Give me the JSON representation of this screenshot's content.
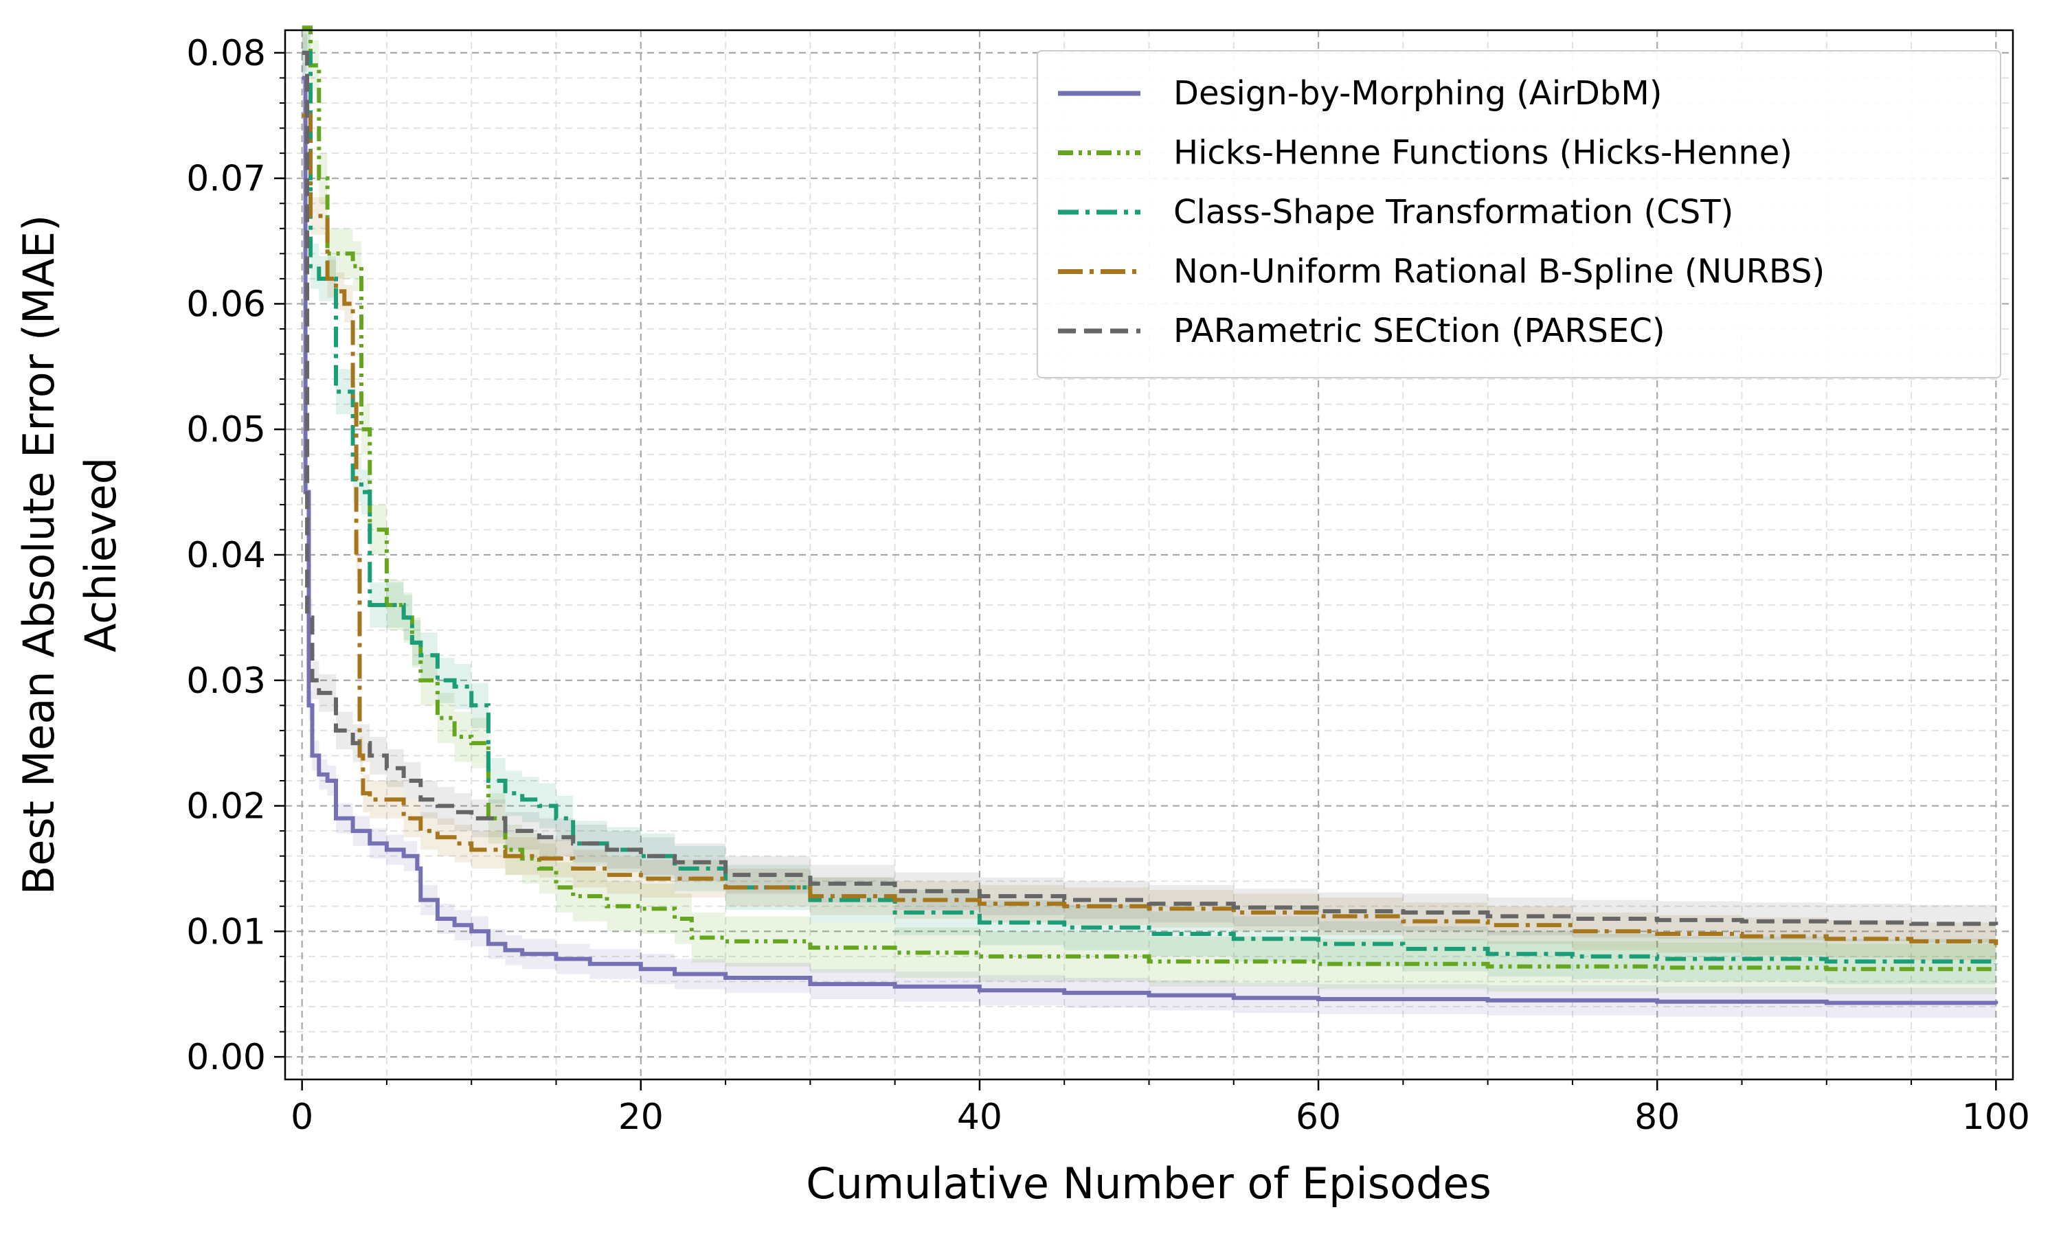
{
  "chart_data": {
    "type": "line",
    "xlabel": "Cumulative Number of Episodes",
    "ylabel": [
      "Best Mean Absolute Error (MAE)",
      "Achieved"
    ],
    "xlim": [
      -1,
      101
    ],
    "ylim": [
      -0.0018,
      0.0818
    ],
    "xticks": [
      0,
      20,
      40,
      60,
      80,
      100
    ],
    "yticks": [
      0.0,
      0.01,
      0.02,
      0.03,
      0.04,
      0.05,
      0.06,
      0.07,
      0.08
    ],
    "xminor_step": 5,
    "yminor_step": 0.002,
    "grid": true,
    "legend_position": "top-right",
    "series": [
      {
        "name": "Design-by-Morphing (AirDbM)",
        "color": "#7570b3",
        "dash": "solid",
        "band": 0.0012,
        "points": [
          [
            0,
            0.078
          ],
          [
            0.2,
            0.045
          ],
          [
            0.4,
            0.028
          ],
          [
            0.6,
            0.024
          ],
          [
            1,
            0.0225
          ],
          [
            1.5,
            0.022
          ],
          [
            2,
            0.019
          ],
          [
            3,
            0.018
          ],
          [
            4,
            0.017
          ],
          [
            5,
            0.0165
          ],
          [
            6,
            0.016
          ],
          [
            6.8,
            0.015
          ],
          [
            7,
            0.0125
          ],
          [
            8,
            0.011
          ],
          [
            9,
            0.0105
          ],
          [
            10,
            0.01
          ],
          [
            11,
            0.009
          ],
          [
            12,
            0.0085
          ],
          [
            13,
            0.0082
          ],
          [
            15,
            0.0078
          ],
          [
            17,
            0.0074
          ],
          [
            20,
            0.007
          ],
          [
            22,
            0.0066
          ],
          [
            25,
            0.0063
          ],
          [
            30,
            0.0058
          ],
          [
            35,
            0.0056
          ],
          [
            40,
            0.0053
          ],
          [
            45,
            0.0051
          ],
          [
            50,
            0.0049
          ],
          [
            55,
            0.0047
          ],
          [
            60,
            0.0046
          ],
          [
            70,
            0.0045
          ],
          [
            80,
            0.0044
          ],
          [
            90,
            0.0043
          ],
          [
            100,
            0.0042
          ]
        ]
      },
      {
        "name": "Hicks-Henne Functions (Hicks-Henne)",
        "color": "#66a61e",
        "dash": "dashdotdot",
        "band": 0.002,
        "points": [
          [
            0,
            0.082
          ],
          [
            0.5,
            0.079
          ],
          [
            1,
            0.07
          ],
          [
            1.5,
            0.064
          ],
          [
            2.5,
            0.064
          ],
          [
            3,
            0.063
          ],
          [
            3.5,
            0.05
          ],
          [
            4,
            0.042
          ],
          [
            5,
            0.036
          ],
          [
            6,
            0.035
          ],
          [
            6.5,
            0.033
          ],
          [
            7,
            0.03
          ],
          [
            8,
            0.027
          ],
          [
            9,
            0.0255
          ],
          [
            10,
            0.025
          ],
          [
            11,
            0.019
          ],
          [
            12,
            0.0165
          ],
          [
            13,
            0.0158
          ],
          [
            14,
            0.015
          ],
          [
            15,
            0.0135
          ],
          [
            16,
            0.0128
          ],
          [
            18,
            0.012
          ],
          [
            20,
            0.0118
          ],
          [
            22,
            0.011
          ],
          [
            23,
            0.0095
          ],
          [
            25,
            0.0092
          ],
          [
            30,
            0.0087
          ],
          [
            35,
            0.0083
          ],
          [
            40,
            0.008
          ],
          [
            50,
            0.0076
          ],
          [
            60,
            0.0074
          ],
          [
            70,
            0.0072
          ],
          [
            80,
            0.0071
          ],
          [
            90,
            0.007
          ],
          [
            100,
            0.0069
          ]
        ]
      },
      {
        "name": "Class-Shape Transformation (CST)",
        "color": "#1b9e77",
        "dash": "dashdot",
        "band": 0.0018,
        "points": [
          [
            0,
            0.08
          ],
          [
            0.5,
            0.063
          ],
          [
            1,
            0.062
          ],
          [
            2,
            0.053
          ],
          [
            3,
            0.046
          ],
          [
            3.5,
            0.045
          ],
          [
            4,
            0.036
          ],
          [
            5,
            0.036
          ],
          [
            6,
            0.035
          ],
          [
            6.5,
            0.033
          ],
          [
            7,
            0.032
          ],
          [
            8,
            0.03
          ],
          [
            9,
            0.0295
          ],
          [
            10,
            0.028
          ],
          [
            11,
            0.022
          ],
          [
            12,
            0.021
          ],
          [
            13,
            0.0205
          ],
          [
            14,
            0.02
          ],
          [
            15,
            0.019
          ],
          [
            16,
            0.017
          ],
          [
            18,
            0.0165
          ],
          [
            20,
            0.016
          ],
          [
            22,
            0.015
          ],
          [
            25,
            0.0135
          ],
          [
            30,
            0.0125
          ],
          [
            35,
            0.0115
          ],
          [
            40,
            0.0107
          ],
          [
            45,
            0.0103
          ],
          [
            50,
            0.0098
          ],
          [
            55,
            0.0094
          ],
          [
            60,
            0.009
          ],
          [
            65,
            0.0086
          ],
          [
            70,
            0.0082
          ],
          [
            75,
            0.008
          ],
          [
            80,
            0.0078
          ],
          [
            90,
            0.0076
          ],
          [
            100,
            0.0074
          ]
        ]
      },
      {
        "name": "Non-Uniform Rational B-Spline (NURBS)",
        "color": "#a6761d",
        "dash": "longdashdot",
        "band": 0.0015,
        "points": [
          [
            0,
            0.075
          ],
          [
            0.5,
            0.067
          ],
          [
            1,
            0.067
          ],
          [
            1.5,
            0.062
          ],
          [
            2,
            0.061
          ],
          [
            2.5,
            0.06
          ],
          [
            3,
            0.052
          ],
          [
            3.2,
            0.04
          ],
          [
            3.4,
            0.024
          ],
          [
            3.6,
            0.021
          ],
          [
            4,
            0.0205
          ],
          [
            6,
            0.019
          ],
          [
            7,
            0.018
          ],
          [
            8,
            0.0175
          ],
          [
            9,
            0.017
          ],
          [
            10,
            0.0165
          ],
          [
            12,
            0.016
          ],
          [
            14,
            0.0158
          ],
          [
            16,
            0.015
          ],
          [
            18,
            0.0145
          ],
          [
            20,
            0.0142
          ],
          [
            25,
            0.0135
          ],
          [
            30,
            0.0128
          ],
          [
            35,
            0.0125
          ],
          [
            40,
            0.0122
          ],
          [
            45,
            0.012
          ],
          [
            50,
            0.0118
          ],
          [
            55,
            0.0115
          ],
          [
            60,
            0.0112
          ],
          [
            65,
            0.0108
          ],
          [
            70,
            0.0105
          ],
          [
            75,
            0.01
          ],
          [
            80,
            0.0098
          ],
          [
            85,
            0.0096
          ],
          [
            90,
            0.0094
          ],
          [
            95,
            0.0092
          ],
          [
            100,
            0.0089
          ]
        ]
      },
      {
        "name": "PARametric SECtion (PARSEC)",
        "color": "#666666",
        "dash": "dashed",
        "band": 0.0015,
        "points": [
          [
            0,
            0.08
          ],
          [
            0.3,
            0.035
          ],
          [
            0.6,
            0.03
          ],
          [
            1,
            0.029
          ],
          [
            2,
            0.026
          ],
          [
            3,
            0.025
          ],
          [
            4,
            0.024
          ],
          [
            5,
            0.023
          ],
          [
            6,
            0.022
          ],
          [
            7,
            0.0205
          ],
          [
            8,
            0.02
          ],
          [
            9,
            0.0195
          ],
          [
            10,
            0.019
          ],
          [
            12,
            0.018
          ],
          [
            14,
            0.0175
          ],
          [
            16,
            0.017
          ],
          [
            18,
            0.0165
          ],
          [
            20,
            0.016
          ],
          [
            22,
            0.0155
          ],
          [
            25,
            0.0145
          ],
          [
            30,
            0.0138
          ],
          [
            35,
            0.0132
          ],
          [
            40,
            0.0128
          ],
          [
            45,
            0.0125
          ],
          [
            50,
            0.0122
          ],
          [
            55,
            0.0119
          ],
          [
            60,
            0.0116
          ],
          [
            65,
            0.0115
          ],
          [
            70,
            0.0112
          ],
          [
            75,
            0.011
          ],
          [
            80,
            0.0109
          ],
          [
            85,
            0.0108
          ],
          [
            90,
            0.0107
          ],
          [
            95,
            0.0106
          ],
          [
            100,
            0.0105
          ]
        ]
      }
    ]
  }
}
